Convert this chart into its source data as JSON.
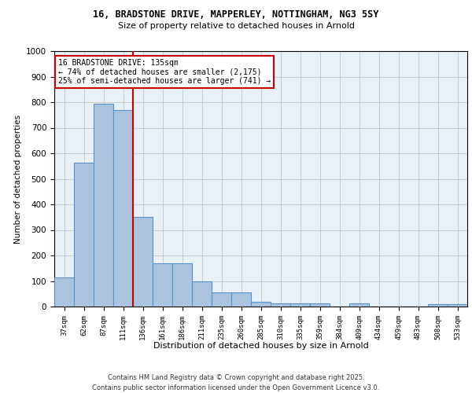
{
  "title_line1": "16, BRADSTONE DRIVE, MAPPERLEY, NOTTINGHAM, NG3 5SY",
  "title_line2": "Size of property relative to detached houses in Arnold",
  "xlabel": "Distribution of detached houses by size in Arnold",
  "ylabel": "Number of detached properties",
  "categories": [
    "37sqm",
    "62sqm",
    "87sqm",
    "111sqm",
    "136sqm",
    "161sqm",
    "186sqm",
    "211sqm",
    "235sqm",
    "260sqm",
    "285sqm",
    "310sqm",
    "335sqm",
    "359sqm",
    "384sqm",
    "409sqm",
    "434sqm",
    "459sqm",
    "483sqm",
    "508sqm",
    "533sqm"
  ],
  "values": [
    113,
    563,
    793,
    770,
    350,
    168,
    168,
    98,
    55,
    55,
    18,
    13,
    13,
    13,
    0,
    13,
    0,
    0,
    0,
    8,
    8
  ],
  "bar_color": "#aac4e0",
  "bar_edge_color": "#5590c8",
  "grid_color": "#cccccc",
  "vline_x_index": 4,
  "vline_color": "#cc0000",
  "annotation_text": "16 BRADSTONE DRIVE: 135sqm\n← 74% of detached houses are smaller (2,175)\n25% of semi-detached houses are larger (741) →",
  "annotation_box_color": "#cc0000",
  "annotation_text_color": "#000000",
  "annotation_bg": "#ffffff",
  "ylim": [
    0,
    1000
  ],
  "yticks": [
    0,
    100,
    200,
    300,
    400,
    500,
    600,
    700,
    800,
    900,
    1000
  ],
  "footer_line1": "Contains HM Land Registry data © Crown copyright and database right 2025.",
  "footer_line2": "Contains public sector information licensed under the Open Government Licence v3.0.",
  "bg_color": "#e8f0f8",
  "fig_bg_color": "#ffffff"
}
